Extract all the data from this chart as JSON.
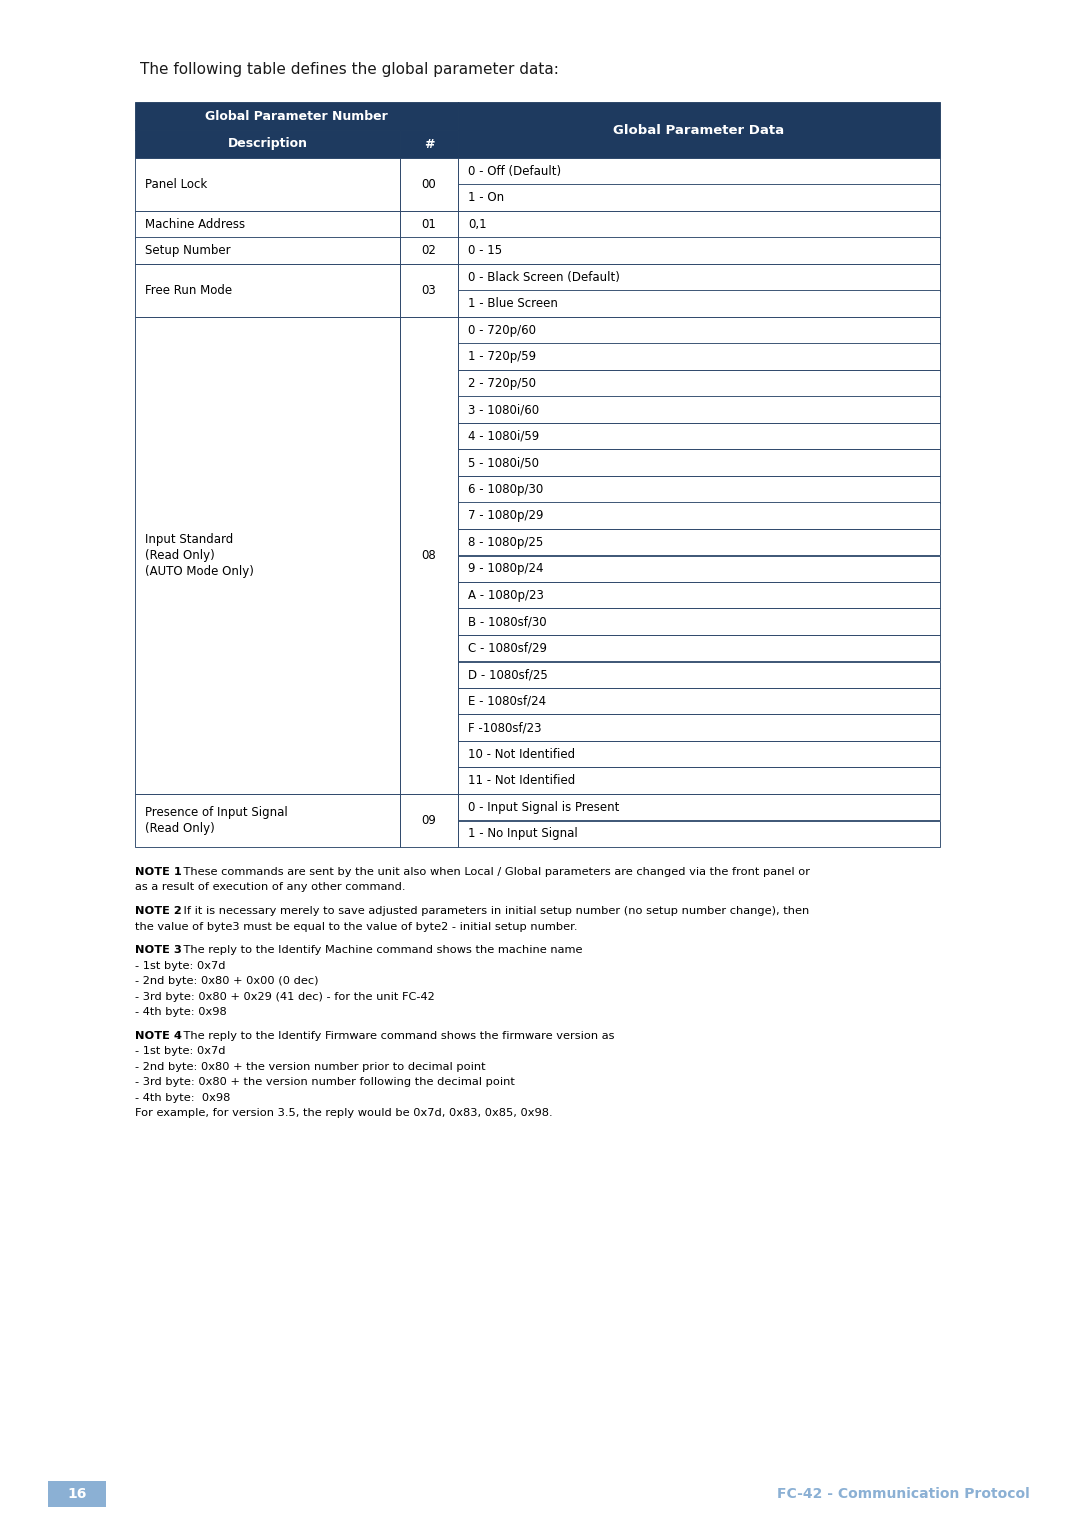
{
  "title_text": "The following table defines the global parameter data:",
  "header_bg": "#1e3a5f",
  "header_text_color": "#ffffff",
  "border_color": "#1e3a5f",
  "row_bg_white": "#ffffff",
  "table_data": [
    {
      "desc": "Panel Lock",
      "num": "00",
      "data_rows": [
        "0 - Off (Default)",
        "1 - On"
      ]
    },
    {
      "desc": "Machine Address",
      "num": "01",
      "data_rows": [
        "0,1"
      ]
    },
    {
      "desc": "Setup Number",
      "num": "02",
      "data_rows": [
        "0 - 15"
      ]
    },
    {
      "desc": "Free Run Mode",
      "num": "03",
      "data_rows": [
        "0 - Black Screen (Default)",
        "1 - Blue Screen"
      ]
    },
    {
      "desc": "Input Standard\n(Read Only)\n(AUTO Mode Only)",
      "num": "08",
      "data_rows": [
        "0 - 720p/60",
        "1 - 720p/59",
        "2 - 720p/50",
        "3 - 1080i/60",
        "4 - 1080i/59",
        "5 - 1080i/50",
        "6 - 1080p/30",
        "7 - 1080p/29",
        "8 - 1080p/25",
        "9 - 1080p/24",
        "A - 1080p/23",
        "B - 1080sf/30",
        "C - 1080sf/29",
        "D - 1080sf/25",
        "E - 1080sf/24",
        "F -1080sf/23",
        "10 - Not Identified",
        "11 - Not Identified"
      ]
    },
    {
      "desc": "Presence of Input Signal\n(Read Only)",
      "num": "09",
      "data_rows": [
        "0 - Input Signal is Present",
        "1 - No Input Signal"
      ]
    }
  ],
  "notes": [
    {
      "bold_part": "NOTE 1",
      "colon_rest": ": These commands are sent by the unit also when Local / Global parameters are changed via the front panel or",
      "continuation": [
        "as a result of execution of any other command."
      ]
    },
    {
      "bold_part": "NOTE 2",
      "colon_rest": ": If it is necessary merely to save adjusted parameters in initial setup number (no setup number change), then",
      "continuation": [
        "the value of byte3 must be equal to the value of byte2 - initial setup number."
      ]
    },
    {
      "bold_part": "NOTE 3",
      "colon_rest": ": The reply to the Identify Machine command shows the machine name",
      "continuation": [
        "- 1st byte: 0x7d",
        "- 2nd byte: 0x80 + 0x00 (0 dec)",
        "- 3rd byte: 0x80 + 0x29 (41 dec) - for the unit FC-42",
        "- 4th byte: 0x98"
      ]
    },
    {
      "bold_part": "NOTE 4",
      "colon_rest": ": The reply to the Identify Firmware command shows the firmware version as",
      "continuation": [
        "- 1st byte: 0x7d",
        "- 2nd byte: 0x80 + the version number prior to decimal point",
        "- 3rd byte: 0x80 + the version number following the decimal point",
        "- 4th byte:  0x98",
        "For example, for version 3.5, the reply would be 0x7d, 0x83, 0x85, 0x98."
      ]
    }
  ],
  "footer_page": "16",
  "footer_text": "FC-42 - Communication Protocol",
  "footer_page_bg": "#8bb0d4",
  "footer_text_color": "#8bb0d4"
}
